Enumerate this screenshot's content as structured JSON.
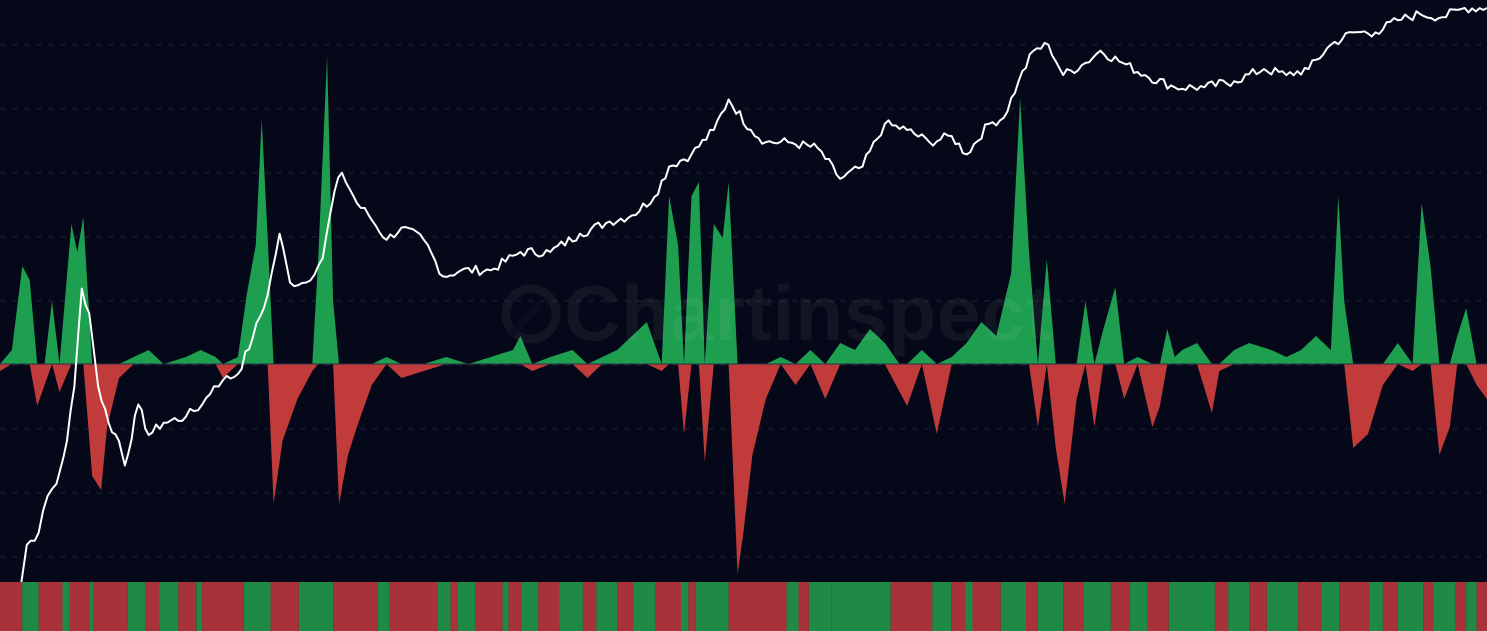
{
  "watermark": {
    "text": "Chartinspect"
  },
  "colors": {
    "background": "#050818",
    "grid": "#1c2338",
    "price_line": "#ffffff",
    "positive": "#1e9e4f",
    "negative": "#c23b3b",
    "strip_positive": "#1f8a45",
    "strip_negative": "#a8323a",
    "zero_line": "#2a3147"
  },
  "chart_data": {
    "type": "area",
    "description_note": "",
    "x_domain": [
      0,
      100
    ],
    "price_series": {
      "scale": "log",
      "ylim": [
        0,
        100
      ],
      "points": [
        [
          0,
          1
        ],
        [
          1.2,
          2
        ],
        [
          1.8,
          12
        ],
        [
          2.6,
          14
        ],
        [
          3.2,
          20
        ],
        [
          3.8,
          22
        ],
        [
          4.5,
          29
        ],
        [
          5.0,
          38
        ],
        [
          5.5,
          54
        ],
        [
          6.0,
          50
        ],
        [
          6.6,
          38
        ],
        [
          7.3,
          32
        ],
        [
          8.0,
          29
        ],
        [
          8.4,
          25
        ],
        [
          9.3,
          35
        ],
        [
          10.0,
          30
        ],
        [
          11.0,
          32
        ],
        [
          12.5,
          33
        ],
        [
          13.6,
          35
        ],
        [
          14.4,
          38
        ],
        [
          15.0,
          39
        ],
        [
          16.0,
          40
        ],
        [
          17.0,
          46
        ],
        [
          18.0,
          53
        ],
        [
          18.8,
          63
        ],
        [
          19.5,
          55
        ],
        [
          20.6,
          55
        ],
        [
          21.7,
          59
        ],
        [
          22.5,
          70
        ],
        [
          23.0,
          73
        ],
        [
          24.0,
          68
        ],
        [
          24.8,
          66
        ],
        [
          26.0,
          62
        ],
        [
          27.0,
          64
        ],
        [
          28.5,
          62
        ],
        [
          29.8,
          56
        ],
        [
          31.0,
          57
        ],
        [
          33.0,
          57
        ],
        [
          35.0,
          60
        ],
        [
          37.0,
          60
        ],
        [
          39.0,
          63
        ],
        [
          41.0,
          65
        ],
        [
          42.5,
          66
        ],
        [
          44.0,
          69
        ],
        [
          45.0,
          74
        ],
        [
          46.5,
          76
        ],
        [
          48.0,
          80
        ],
        [
          49.0,
          85
        ],
        [
          50.5,
          80
        ],
        [
          51.5,
          78
        ],
        [
          53.0,
          78
        ],
        [
          55.0,
          77
        ],
        [
          56.5,
          72
        ],
        [
          58.0,
          74
        ],
        [
          59.5,
          81
        ],
        [
          61.0,
          80
        ],
        [
          62.5,
          78
        ],
        [
          64.0,
          79
        ],
        [
          65.0,
          76
        ],
        [
          66.5,
          81
        ],
        [
          67.5,
          82
        ],
        [
          68.5,
          88
        ],
        [
          69.5,
          93
        ],
        [
          70.5,
          94
        ],
        [
          71.5,
          89
        ],
        [
          73.0,
          91
        ],
        [
          74.0,
          93
        ],
        [
          75.5,
          91
        ],
        [
          77.0,
          89
        ],
        [
          79.0,
          87
        ],
        [
          81.0,
          87
        ],
        [
          83.0,
          88
        ],
        [
          85.0,
          90
        ],
        [
          86.5,
          89
        ],
        [
          88.0,
          90
        ],
        [
          89.5,
          94
        ],
        [
          91.0,
          96
        ],
        [
          92.5,
          96
        ],
        [
          94.0,
          98
        ],
        [
          95.5,
          99
        ],
        [
          97.0,
          98.5
        ],
        [
          98.5,
          100
        ],
        [
          100,
          100
        ]
      ]
    },
    "oscillator_series": {
      "ylim": [
        -100,
        100
      ],
      "zero": 0,
      "points": [
        [
          0,
          -2
        ],
        [
          0.8,
          4
        ],
        [
          1.5,
          28
        ],
        [
          2.0,
          24
        ],
        [
          2.5,
          -12
        ],
        [
          3.0,
          -6
        ],
        [
          3.5,
          18
        ],
        [
          4.0,
          -8
        ],
        [
          4.8,
          40
        ],
        [
          5.2,
          32
        ],
        [
          5.6,
          42
        ],
        [
          6.2,
          -32
        ],
        [
          6.8,
          -36
        ],
        [
          7.2,
          -18
        ],
        [
          8.0,
          -4
        ],
        [
          9.0,
          2
        ],
        [
          10.0,
          4
        ],
        [
          11.0,
          0
        ],
        [
          12.5,
          2
        ],
        [
          13.5,
          4
        ],
        [
          14.5,
          2
        ],
        [
          15.0,
          -4
        ],
        [
          16.0,
          2
        ],
        [
          16.6,
          20
        ],
        [
          17.2,
          34
        ],
        [
          17.6,
          70
        ],
        [
          18.0,
          36
        ],
        [
          18.4,
          -40
        ],
        [
          19.0,
          -22
        ],
        [
          20.0,
          -10
        ],
        [
          21.0,
          -2
        ],
        [
          21.4,
          30
        ],
        [
          22.0,
          88
        ],
        [
          22.4,
          18
        ],
        [
          22.8,
          -40
        ],
        [
          23.4,
          -26
        ],
        [
          24.0,
          -18
        ],
        [
          25.0,
          -6
        ],
        [
          26.0,
          2
        ],
        [
          27.0,
          -4
        ],
        [
          28.5,
          -2
        ],
        [
          30.0,
          2
        ],
        [
          31.5,
          0
        ],
        [
          33.0,
          2
        ],
        [
          34.5,
          4
        ],
        [
          35.0,
          8
        ],
        [
          35.8,
          -2
        ],
        [
          37.0,
          2
        ],
        [
          38.5,
          4
        ],
        [
          39.5,
          -4
        ],
        [
          40.5,
          2
        ],
        [
          41.5,
          4
        ],
        [
          42.5,
          8
        ],
        [
          43.5,
          12
        ],
        [
          44.5,
          -2
        ],
        [
          45.0,
          48
        ],
        [
          45.6,
          34
        ],
        [
          46.0,
          -20
        ],
        [
          46.5,
          48
        ],
        [
          47.0,
          52
        ],
        [
          47.4,
          -28
        ],
        [
          48.0,
          40
        ],
        [
          48.6,
          36
        ],
        [
          49.0,
          52
        ],
        [
          49.6,
          -60
        ],
        [
          50.0,
          -48
        ],
        [
          50.6,
          -26
        ],
        [
          51.5,
          -10
        ],
        [
          52.5,
          2
        ],
        [
          53.5,
          -6
        ],
        [
          54.5,
          4
        ],
        [
          55.5,
          -10
        ],
        [
          56.5,
          6
        ],
        [
          57.5,
          4
        ],
        [
          58.5,
          10
        ],
        [
          59.5,
          6
        ],
        [
          60.5,
          -8
        ],
        [
          61.0,
          -12
        ],
        [
          62.0,
          4
        ],
        [
          63.0,
          -20
        ],
        [
          64.0,
          2
        ],
        [
          65.0,
          6
        ],
        [
          66.0,
          12
        ],
        [
          67.0,
          8
        ],
        [
          68.0,
          26
        ],
        [
          68.6,
          76
        ],
        [
          69.2,
          32
        ],
        [
          69.8,
          -18
        ],
        [
          70.4,
          30
        ],
        [
          71.0,
          -24
        ],
        [
          71.6,
          -40
        ],
        [
          72.4,
          -10
        ],
        [
          73.0,
          18
        ],
        [
          73.6,
          -18
        ],
        [
          74.2,
          10
        ],
        [
          75.0,
          22
        ],
        [
          75.6,
          -10
        ],
        [
          76.5,
          2
        ],
        [
          77.5,
          -18
        ],
        [
          78.0,
          -12
        ],
        [
          78.5,
          10
        ],
        [
          79.0,
          2
        ],
        [
          79.5,
          4
        ],
        [
          80.5,
          6
        ],
        [
          81.5,
          -14
        ],
        [
          82.0,
          -2
        ],
        [
          83.0,
          4
        ],
        [
          84.0,
          6
        ],
        [
          85.5,
          4
        ],
        [
          86.5,
          2
        ],
        [
          87.5,
          4
        ],
        [
          88.5,
          8
        ],
        [
          89.5,
          4
        ],
        [
          90.0,
          48
        ],
        [
          90.4,
          18
        ],
        [
          91.0,
          -24
        ],
        [
          92.0,
          -20
        ],
        [
          93.0,
          -6
        ],
        [
          94.0,
          6
        ],
        [
          95.0,
          -2
        ],
        [
          95.6,
          46
        ],
        [
          96.2,
          28
        ],
        [
          96.8,
          -26
        ],
        [
          97.5,
          -18
        ],
        [
          98.0,
          8
        ],
        [
          98.6,
          16
        ],
        [
          99.3,
          -6
        ],
        [
          100,
          -10
        ]
      ]
    },
    "regime_strip": {
      "segments": [
        [
          "neg",
          0,
          1.5
        ],
        [
          "pos",
          1.5,
          2.6
        ],
        [
          "neg",
          2.6,
          4.2
        ],
        [
          "pos",
          4.2,
          4.7
        ],
        [
          "neg",
          4.7,
          6.0
        ],
        [
          "pos",
          6.0,
          6.3
        ],
        [
          "neg",
          6.3,
          8.6
        ],
        [
          "pos",
          8.6,
          9.8
        ],
        [
          "neg",
          9.8,
          10.7
        ],
        [
          "pos",
          10.7,
          12.0
        ],
        [
          "neg",
          12.0,
          13.2
        ],
        [
          "pos",
          13.2,
          13.6
        ],
        [
          "neg",
          13.6,
          16.4
        ],
        [
          "pos",
          16.4,
          18.2
        ],
        [
          "neg",
          18.2,
          20.1
        ],
        [
          "pos",
          20.1,
          22.4
        ],
        [
          "neg",
          22.4,
          25.4
        ],
        [
          "pos",
          25.4,
          26.2
        ],
        [
          "neg",
          26.2,
          29.4
        ],
        [
          "pos",
          29.4,
          30.3
        ],
        [
          "neg",
          30.3,
          30.8
        ],
        [
          "pos",
          30.8,
          32.0
        ],
        [
          "neg",
          32.0,
          33.8
        ],
        [
          "pos",
          33.8,
          34.2
        ],
        [
          "neg",
          34.2,
          35.1
        ],
        [
          "pos",
          35.1,
          36.2
        ],
        [
          "neg",
          36.2,
          37.6
        ],
        [
          "pos",
          37.6,
          39.2
        ],
        [
          "neg",
          39.2,
          40.1
        ],
        [
          "pos",
          40.1,
          41.5
        ],
        [
          "neg",
          41.5,
          42.6
        ],
        [
          "pos",
          42.6,
          44.1
        ],
        [
          "neg",
          44.1,
          45.8
        ],
        [
          "pos",
          45.8,
          46.3
        ],
        [
          "neg",
          46.3,
          46.8
        ],
        [
          "pos",
          46.8,
          49.0
        ],
        [
          "neg",
          49.0,
          52.9
        ],
        [
          "pos",
          52.9,
          53.7
        ],
        [
          "neg",
          53.7,
          54.4
        ],
        [
          "pos",
          54.4,
          55.9
        ],
        [
          "pos",
          55.9,
          59.9
        ],
        [
          "neg",
          59.9,
          62.7
        ],
        [
          "pos",
          62.7,
          64.0
        ],
        [
          "neg",
          64.0,
          64.9
        ],
        [
          "pos",
          64.9,
          65.4
        ],
        [
          "neg",
          65.4,
          67.3
        ],
        [
          "pos",
          67.3,
          69.0
        ],
        [
          "neg",
          69.0,
          69.8
        ],
        [
          "pos",
          69.8,
          71.5
        ],
        [
          "neg",
          71.5,
          72.9
        ],
        [
          "pos",
          72.9,
          74.7
        ],
        [
          "neg",
          74.7,
          76.0
        ],
        [
          "pos",
          76.0,
          77.2
        ],
        [
          "neg",
          77.2,
          78.6
        ],
        [
          "pos",
          78.6,
          81.7
        ],
        [
          "neg",
          81.7,
          82.6
        ],
        [
          "pos",
          82.6,
          84.0
        ],
        [
          "neg",
          84.0,
          85.2
        ],
        [
          "pos",
          85.2,
          87.3
        ],
        [
          "neg",
          87.3,
          88.9
        ],
        [
          "pos",
          88.9,
          90.1
        ],
        [
          "neg",
          90.1,
          92.1
        ],
        [
          "pos",
          92.1,
          93.0
        ],
        [
          "neg",
          93.0,
          94.0
        ],
        [
          "pos",
          94.0,
          95.7
        ],
        [
          "neg",
          95.7,
          96.4
        ],
        [
          "pos",
          96.4,
          97.9
        ],
        [
          "neg",
          97.9,
          98.6
        ],
        [
          "pos",
          98.6,
          99.3
        ],
        [
          "neg",
          99.3,
          100
        ]
      ]
    },
    "grid": true,
    "title": "",
    "xlabel": "",
    "ylabel": ""
  }
}
